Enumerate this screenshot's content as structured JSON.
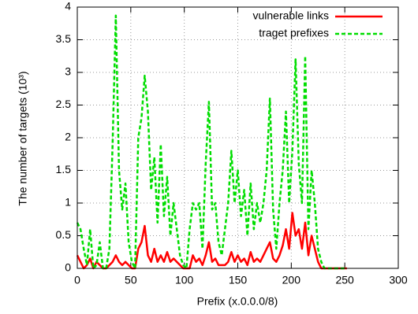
{
  "chart_data": {
    "type": "line",
    "xlabel": "Prefix (x.0.0.0/8)",
    "ylabel": "The number of targets (10³)",
    "x": [
      0,
      3,
      6,
      9,
      12,
      15,
      18,
      21,
      24,
      27,
      30,
      33,
      36,
      39,
      42,
      45,
      48,
      51,
      54,
      57,
      60,
      63,
      66,
      69,
      72,
      75,
      78,
      81,
      84,
      87,
      90,
      93,
      96,
      99,
      102,
      105,
      108,
      111,
      114,
      117,
      120,
      123,
      126,
      129,
      132,
      135,
      138,
      141,
      144,
      147,
      150,
      153,
      156,
      159,
      162,
      165,
      168,
      171,
      174,
      177,
      180,
      183,
      186,
      189,
      192,
      195,
      198,
      201,
      204,
      207,
      210,
      213,
      216,
      219,
      222,
      225,
      228,
      231,
      234,
      237,
      240,
      243,
      246,
      249,
      252
    ],
    "series": [
      {
        "name": "vulnerable links",
        "color": "#ff0000",
        "dashed": false,
        "values": [
          0.2,
          0.1,
          0,
          0.05,
          0.15,
          0,
          0.1,
          0.05,
          0,
          0,
          0.05,
          0.1,
          0.2,
          0.1,
          0.05,
          0.1,
          0.05,
          0,
          0,
          0.3,
          0.4,
          0.65,
          0.2,
          0.1,
          0.3,
          0.1,
          0.2,
          0.1,
          0.25,
          0.1,
          0.15,
          0.1,
          0.05,
          0,
          0,
          0,
          0.2,
          0.1,
          0.15,
          0.05,
          0.2,
          0.4,
          0.1,
          0.15,
          0.05,
          0.05,
          0.05,
          0.1,
          0.25,
          0.1,
          0.2,
          0.1,
          0.15,
          0.05,
          0.25,
          0.1,
          0.15,
          0.1,
          0.2,
          0.3,
          0.4,
          0.15,
          0.1,
          0.2,
          0.35,
          0.6,
          0.3,
          0.85,
          0.5,
          0.6,
          0.3,
          0.7,
          0.2,
          0.5,
          0.3,
          0.1,
          0,
          0,
          0,
          0,
          0,
          0,
          0,
          0,
          0
        ]
      },
      {
        "name": "traget prefixes",
        "color": "#00dd00",
        "dashed": true,
        "values": [
          0.7,
          0.6,
          0.3,
          0.05,
          0.6,
          0,
          0.05,
          0.4,
          0,
          0,
          0.3,
          1.9,
          3.87,
          1.5,
          0.9,
          1.3,
          0.4,
          0.1,
          0,
          2.0,
          2.3,
          2.95,
          2.4,
          1.2,
          1.7,
          0.7,
          1.9,
          0.8,
          1.4,
          0.5,
          1.0,
          0.6,
          0.2,
          0.05,
          0,
          0.6,
          1.0,
          0.9,
          1.0,
          0.3,
          1.6,
          2.55,
          0.9,
          1.0,
          0.4,
          0.2,
          0.6,
          1.0,
          1.8,
          1.0,
          1.5,
          0.8,
          1.2,
          0.5,
          1.3,
          0.6,
          1.0,
          0.7,
          1.0,
          1.5,
          2.6,
          0.9,
          0.3,
          1.0,
          1.5,
          2.4,
          1.0,
          1.8,
          3.2,
          1.6,
          1.0,
          3.25,
          0.6,
          1.5,
          1.0,
          0.3,
          0.1,
          0,
          0,
          0,
          0,
          0,
          0,
          0,
          0
        ]
      }
    ],
    "xlim": [
      0,
      300
    ],
    "xticks": [
      0,
      50,
      100,
      150,
      200,
      250,
      300
    ],
    "ylim": [
      0,
      4
    ],
    "yticks": [
      0,
      0.5,
      1,
      1.5,
      2,
      2.5,
      3,
      3.5,
      4
    ],
    "grid": true,
    "legend": "upper right"
  }
}
